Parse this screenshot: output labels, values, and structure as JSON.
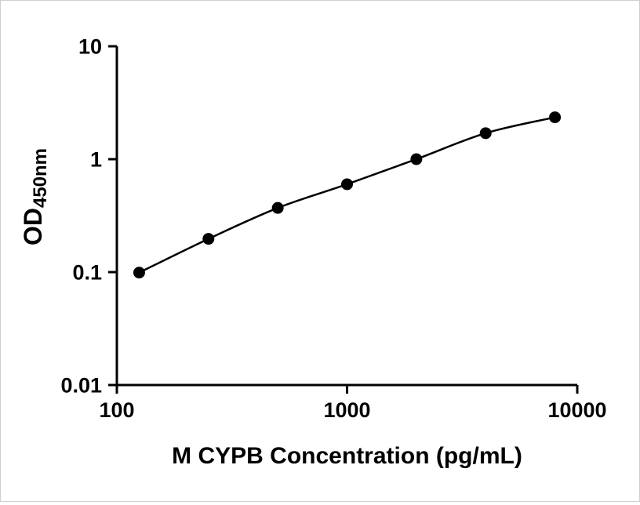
{
  "figure": {
    "background": "#ffffff",
    "border_color": "#cfcfcf"
  },
  "chart_data": {
    "type": "scatter",
    "x": [
      125,
      250,
      500,
      1000,
      2000,
      4000,
      8000
    ],
    "y": [
      0.099,
      0.197,
      0.37,
      0.6,
      1.0,
      1.7,
      2.35
    ],
    "title": "",
    "xlabel": "M CYPB Concentration (pg/mL)",
    "ylabel_main": "OD",
    "ylabel_sub": "450nm",
    "x_scale": "log",
    "y_scale": "log",
    "xlim": [
      100,
      10000
    ],
    "ylim": [
      0.01,
      10
    ],
    "x_ticks": [
      100,
      1000,
      10000
    ],
    "x_tick_labels": [
      "100",
      "1000",
      "10000"
    ],
    "y_ticks": [
      0.01,
      0.1,
      1,
      10
    ],
    "y_tick_labels": [
      "0.01",
      "0.1",
      "1",
      "10"
    ],
    "grid": false,
    "legend": false,
    "curve": "smooth",
    "marker": "circle",
    "marker_color": "#000000",
    "line_color": "#000000",
    "axis_color": "#000000"
  }
}
